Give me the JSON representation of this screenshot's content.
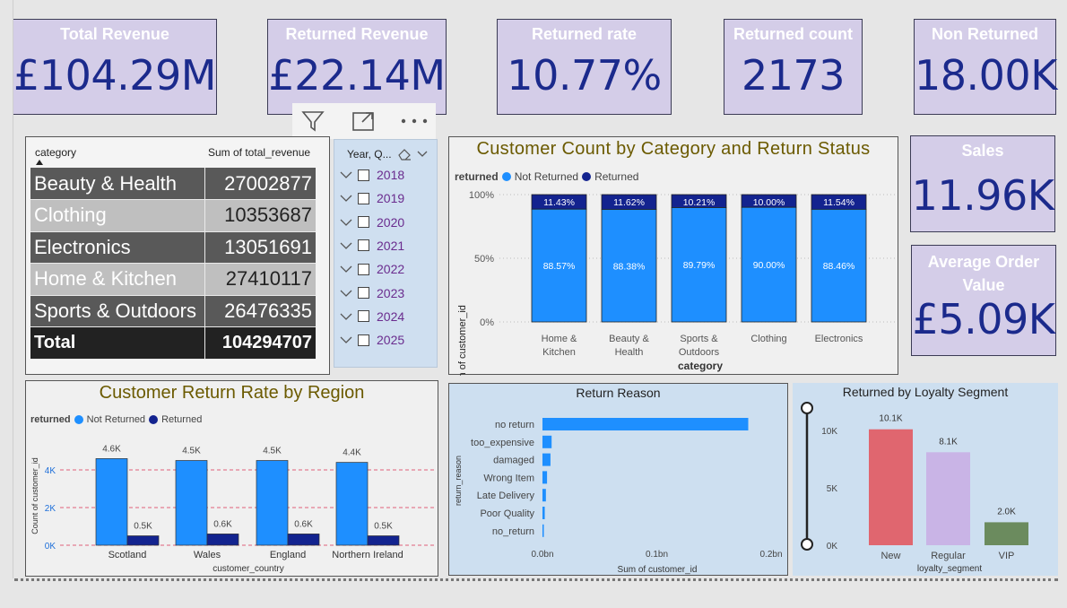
{
  "kpis": [
    {
      "title": "Total Revenue",
      "value": "£104.29M"
    },
    {
      "title": "Returned Revenue",
      "value": "£22.14M"
    },
    {
      "title": "Returned rate",
      "value": "10.77%"
    },
    {
      "title": "Returned count",
      "value": "2173"
    },
    {
      "title": "Non Returned",
      "value": "18.00K"
    },
    {
      "title": "Sales",
      "value": "11.96K"
    },
    {
      "title": "Average Order Value",
      "value": "£5.09K"
    }
  ],
  "table": {
    "headers": [
      "category",
      "Sum of total_revenue"
    ],
    "rows": [
      {
        "category": "Beauty & Health",
        "value": "27002877"
      },
      {
        "category": "Clothing",
        "value": "10353687"
      },
      {
        "category": "Electronics",
        "value": "13051691"
      },
      {
        "category": "Home & Kitchen",
        "value": "27410117"
      },
      {
        "category": "Sports & Outdoors",
        "value": "26476335"
      }
    ],
    "total": {
      "label": "Total",
      "value": "104294707"
    }
  },
  "slicer": {
    "header": "Year, Q...",
    "years": [
      "2018",
      "2019",
      "2020",
      "2021",
      "2022",
      "2023",
      "2024",
      "2025"
    ]
  },
  "colors": {
    "not_returned": "#1e8fff",
    "returned": "#13238f",
    "new": "#e0666f",
    "regular": "#c9b4e6",
    "vip": "#6b8b5e",
    "title_olive": "#6b5a00"
  },
  "chart_data": [
    {
      "type": "bar",
      "stacked_percent": true,
      "title": "Customer Count by Category and Return Status",
      "legend_title": "returned",
      "xlabel": "category",
      "ylabel": "Sum of customer_id",
      "yticks": [
        "100%",
        "50%",
        "0%"
      ],
      "categories": [
        "Home & Kitchen",
        "Beauty & Health",
        "Sports & Outdoors",
        "Clothing",
        "Electronics"
      ],
      "series": [
        {
          "name": "Not Returned",
          "values": [
            88.57,
            88.38,
            89.79,
            90.0,
            88.46
          ],
          "labels": [
            "88.57%",
            "88.38%",
            "89.79%",
            "90.00%",
            "88.46%"
          ]
        },
        {
          "name": "Returned",
          "values": [
            11.43,
            11.62,
            10.21,
            10.0,
            11.54
          ],
          "labels": [
            "11.43%",
            "11.62%",
            "10.21%",
            "10.00%",
            "11.54%"
          ]
        }
      ]
    },
    {
      "type": "bar",
      "title": "Customer Return Rate by Region",
      "legend_title": "returned",
      "xlabel": "customer_country",
      "ylabel": "Count of customer_id",
      "yticks": [
        "4K",
        "2K",
        "0K"
      ],
      "categories": [
        "Scotland",
        "Wales",
        "England",
        "Northern Ireland"
      ],
      "series": [
        {
          "name": "Not Returned",
          "values": [
            4600,
            4500,
            4500,
            4400
          ],
          "labels": [
            "4.6K",
            "4.5K",
            "4.5K",
            "4.4K"
          ]
        },
        {
          "name": "Returned",
          "values": [
            500,
            600,
            600,
            500
          ],
          "labels": [
            "0.5K",
            "0.6K",
            "0.6K",
            "0.5K"
          ]
        }
      ],
      "ylim": [
        0,
        5000
      ]
    },
    {
      "type": "bar",
      "orientation": "horizontal",
      "title": "Return Reason",
      "xlabel": "Sum of customer_id",
      "ylabel": "return_reason",
      "categories": [
        "no return",
        "too_expensive",
        "damaged",
        "Wrong Item",
        "Late Delivery",
        "Poor Quality",
        "no_return"
      ],
      "values": [
        0.18,
        0.008,
        0.007,
        0.004,
        0.003,
        0.002,
        0.0003
      ],
      "xticks": [
        "0.0bn",
        "0.1bn",
        "0.2bn"
      ],
      "xlim": [
        0,
        0.2
      ]
    },
    {
      "type": "bar",
      "title": "Returned by Loyalty Segment",
      "xlabel": "loyalty_segment",
      "yticks": [
        "10K",
        "5K",
        "0K"
      ],
      "categories": [
        "New",
        "Regular",
        "VIP"
      ],
      "values": [
        10100,
        8100,
        2000
      ],
      "labels": [
        "10.1K",
        "8.1K",
        "2.0K"
      ],
      "ylim": [
        0,
        11500
      ]
    }
  ]
}
